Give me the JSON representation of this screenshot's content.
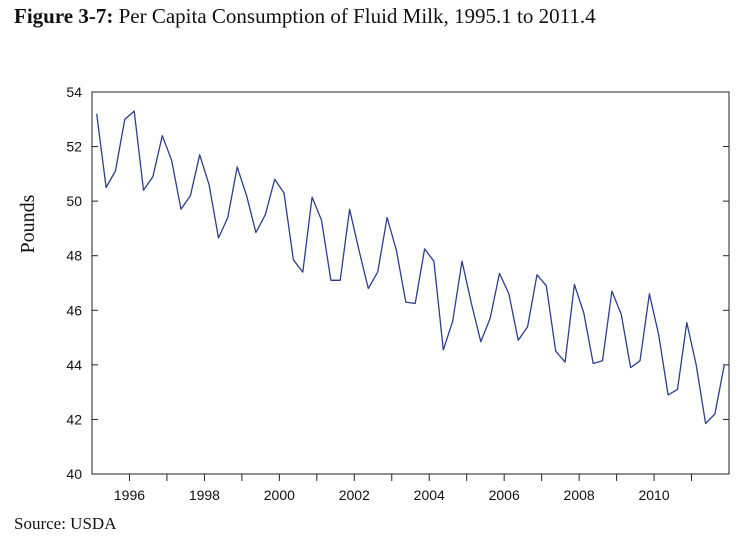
{
  "figure": {
    "label": "Figure 3-7:",
    "title": "Per Capita Consumption of Fluid Milk, 1995.1 to 2011.4",
    "source": "Source: USDA"
  },
  "colors": {
    "line": "#2b3f8c",
    "axis": "#222222"
  },
  "chart_data": {
    "type": "line",
    "title": "Per Capita Consumption of Fluid Milk, 1995.1 to 2011.4",
    "xlabel": "",
    "ylabel": "Pounds",
    "xlim": [
      1995.0,
      2012.0
    ],
    "ylim": [
      40,
      54
    ],
    "grid": false,
    "y_ticks": [
      "40",
      "42",
      "44",
      "46",
      "48",
      "50",
      "52",
      "54"
    ],
    "x_ticks": [
      "1996",
      "1998",
      "2000",
      "2002",
      "2004",
      "2006",
      "2008",
      "2010"
    ],
    "x": [
      "1995.1",
      "1995.2",
      "1995.3",
      "1995.4",
      "1996.1",
      "1996.2",
      "1996.3",
      "1996.4",
      "1997.1",
      "1997.2",
      "1997.3",
      "1997.4",
      "1998.1",
      "1998.2",
      "1998.3",
      "1998.4",
      "1999.1",
      "1999.2",
      "1999.3",
      "1999.4",
      "2000.1",
      "2000.2",
      "2000.3",
      "2000.4",
      "2001.1",
      "2001.2",
      "2001.3",
      "2001.4",
      "2002.1",
      "2002.2",
      "2002.3",
      "2002.4",
      "2003.1",
      "2003.2",
      "2003.3",
      "2003.4",
      "2004.1",
      "2004.2",
      "2004.3",
      "2004.4",
      "2005.1",
      "2005.2",
      "2005.3",
      "2005.4",
      "2006.1",
      "2006.2",
      "2006.3",
      "2006.4",
      "2007.1",
      "2007.2",
      "2007.3",
      "2007.4",
      "2008.1",
      "2008.2",
      "2008.3",
      "2008.4",
      "2009.1",
      "2009.2",
      "2009.3",
      "2009.4",
      "2010.1",
      "2010.2",
      "2010.3",
      "2010.4",
      "2011.1",
      "2011.2",
      "2011.3",
      "2011.4"
    ],
    "series": [
      {
        "values": [
          53.2,
          50.5,
          51.1,
          53.0,
          53.3,
          50.4,
          50.9,
          52.4,
          51.5,
          49.7,
          50.2,
          51.7,
          50.6,
          48.65,
          49.4,
          51.25,
          50.2,
          48.85,
          49.5,
          50.8,
          50.3,
          47.85,
          47.4,
          50.15,
          49.3,
          47.1,
          47.1,
          49.7,
          48.2,
          46.8,
          47.4,
          49.4,
          48.2,
          46.3,
          46.25,
          48.25,
          47.8,
          44.55,
          45.6,
          47.8,
          46.25,
          44.85,
          45.7,
          47.35,
          46.6,
          44.9,
          45.4,
          47.3,
          46.9,
          44.5,
          44.1,
          46.95,
          45.9,
          44.05,
          44.15,
          46.7,
          45.85,
          43.9,
          44.15,
          46.6,
          45.1,
          42.9,
          43.1,
          45.55,
          44.0,
          41.85,
          42.2,
          44.0
        ]
      }
    ]
  }
}
